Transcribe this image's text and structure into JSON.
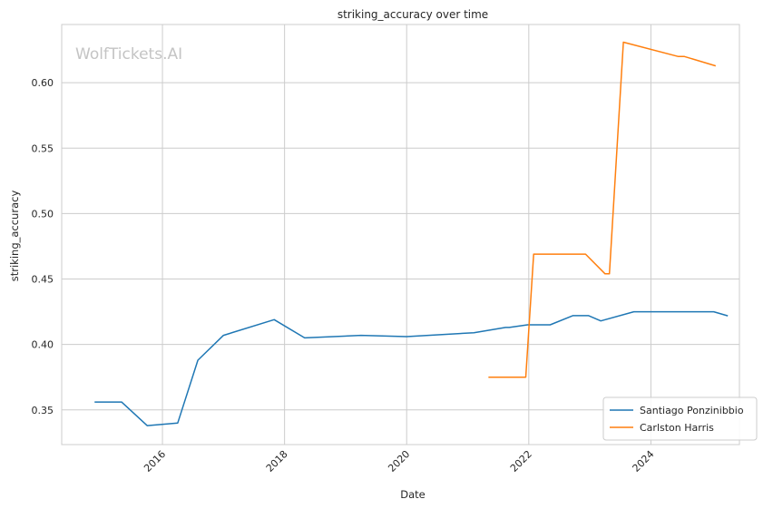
{
  "chart_data": {
    "type": "line",
    "title": "striking_accuracy over time",
    "xlabel": "Date",
    "ylabel": "striking_accuracy",
    "watermark": "WolfTickets.AI",
    "xlim": [
      2014.35,
      2025.45
    ],
    "ylim": [
      0.3235,
      0.6445
    ],
    "x_ticks": [
      2016,
      2018,
      2020,
      2022,
      2024
    ],
    "x_tick_labels": [
      "2016",
      "2018",
      "2020",
      "2022",
      "2024"
    ],
    "y_ticks": [
      0.35,
      0.4,
      0.45,
      0.5,
      0.55,
      0.6
    ],
    "y_tick_labels": [
      "0.35",
      "0.40",
      "0.45",
      "0.50",
      "0.55",
      "0.60"
    ],
    "grid": true,
    "legend_position": "lower-right",
    "series": [
      {
        "name": "Santiago Ponzinibbio",
        "color": "#1f77b4",
        "x": [
          2014.9,
          2015.33,
          2015.75,
          2016.25,
          2016.58,
          2017.0,
          2017.83,
          2018.33,
          2019.25,
          2020.0,
          2021.1,
          2021.62,
          2021.68,
          2021.98,
          2022.35,
          2022.72,
          2022.98,
          2023.18,
          2023.72,
          2024.25,
          2024.75,
          2025.03,
          2025.25
        ],
        "y": [
          0.356,
          0.356,
          0.338,
          0.34,
          0.388,
          0.407,
          0.419,
          0.405,
          0.407,
          0.406,
          0.409,
          0.413,
          0.413,
          0.415,
          0.415,
          0.422,
          0.422,
          0.418,
          0.425,
          0.425,
          0.425,
          0.425,
          0.422
        ]
      },
      {
        "name": "Carlston Harris",
        "color": "#ff7f0e",
        "x": [
          2021.35,
          2021.95,
          2022.08,
          2022.93,
          2023.25,
          2023.32,
          2023.55,
          2024.45,
          2024.55,
          2025.05
        ],
        "y": [
          0.375,
          0.375,
          0.469,
          0.469,
          0.454,
          0.454,
          0.631,
          0.62,
          0.62,
          0.613
        ]
      }
    ]
  }
}
